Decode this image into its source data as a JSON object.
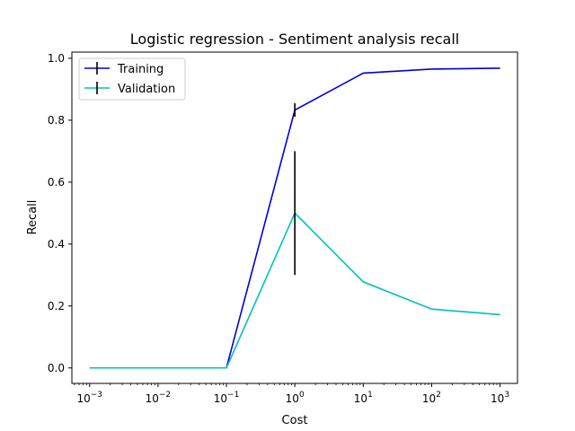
{
  "chart_data": {
    "type": "line",
    "title": "Logistic regression - Sentiment analysis recall",
    "xlabel": "Cost",
    "ylabel": "Recall",
    "xscale": "log",
    "x": [
      0.001,
      0.01,
      0.1,
      1,
      10,
      100,
      1000
    ],
    "xticks": [
      {
        "value": 0.001,
        "base": "10",
        "exp": "−3"
      },
      {
        "value": 0.01,
        "base": "10",
        "exp": "−2"
      },
      {
        "value": 0.1,
        "base": "10",
        "exp": "−1"
      },
      {
        "value": 1,
        "base": "10",
        "exp": "0"
      },
      {
        "value": 10,
        "base": "10",
        "exp": "1"
      },
      {
        "value": 100,
        "base": "10",
        "exp": "2"
      },
      {
        "value": 1000,
        "base": "10",
        "exp": "3"
      }
    ],
    "yticks": [
      {
        "value": 0.0,
        "label": "0.0"
      },
      {
        "value": 0.2,
        "label": "0.2"
      },
      {
        "value": 0.4,
        "label": "0.4"
      },
      {
        "value": 0.6,
        "label": "0.6"
      },
      {
        "value": 0.8,
        "label": "0.8"
      },
      {
        "value": 1.0,
        "label": "1.0"
      }
    ],
    "xlim": [
      0.00055,
      1800
    ],
    "ylim": [
      -0.05,
      1.02
    ],
    "grid": false,
    "legend_position": "top-left",
    "series": [
      {
        "name": "Training",
        "color": "#0000dd",
        "values": [
          0.0,
          0.0,
          0.0,
          0.833,
          0.952,
          0.965,
          0.968
        ],
        "errors": [
          0,
          0,
          0,
          0.022,
          0,
          0,
          0
        ]
      },
      {
        "name": "Validation",
        "color": "#00bfbf",
        "values": [
          0.0,
          0.0,
          0.0,
          0.5,
          0.278,
          0.19,
          0.172
        ],
        "errors": [
          0,
          0,
          0,
          0.2,
          0,
          0,
          0
        ]
      }
    ],
    "errorbar_color": "#000000"
  }
}
